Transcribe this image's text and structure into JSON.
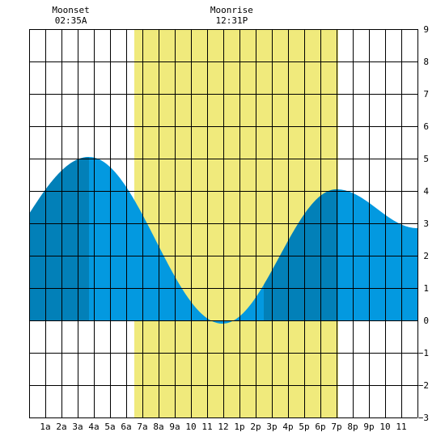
{
  "chart_data": {
    "type": "area",
    "title": "",
    "xlabel": "",
    "ylabel": "",
    "x_range_hours": [
      0,
      24
    ],
    "ylim": [
      -3,
      9
    ],
    "y_ticks": [
      9,
      8,
      7,
      6,
      5,
      4,
      3,
      2,
      1,
      0,
      -1,
      -2,
      -3
    ],
    "x_ticks": [
      {
        "hour": 1,
        "label": "1a"
      },
      {
        "hour": 2,
        "label": "2a"
      },
      {
        "hour": 3,
        "label": "3a"
      },
      {
        "hour": 4,
        "label": "4a"
      },
      {
        "hour": 5,
        "label": "5a"
      },
      {
        "hour": 6,
        "label": "6a"
      },
      {
        "hour": 7,
        "label": "7a"
      },
      {
        "hour": 8,
        "label": "8a"
      },
      {
        "hour": 9,
        "label": "9a"
      },
      {
        "hour": 10,
        "label": "10"
      },
      {
        "hour": 11,
        "label": "11"
      },
      {
        "hour": 12,
        "label": "12"
      },
      {
        "hour": 13,
        "label": "1p"
      },
      {
        "hour": 14,
        "label": "2p"
      },
      {
        "hour": 15,
        "label": "3p"
      },
      {
        "hour": 16,
        "label": "4p"
      },
      {
        "hour": 17,
        "label": "5p"
      },
      {
        "hour": 18,
        "label": "6p"
      },
      {
        "hour": 19,
        "label": "7p"
      },
      {
        "hour": 20,
        "label": "8p"
      },
      {
        "hour": 21,
        "label": "9p"
      },
      {
        "hour": 22,
        "label": "10"
      },
      {
        "hour": 23,
        "label": "11"
      }
    ],
    "daylight": {
      "start_hour": 6.5,
      "end_hour": 19.1
    },
    "dark_bands_hours": [
      [
        0,
        3.7
      ],
      [
        14.5,
        19.1
      ]
    ],
    "tide_extremes": [
      {
        "hour": 3.7,
        "height": 5.05
      },
      {
        "hour": 11.95,
        "height": -0.1
      },
      {
        "hour": 19.0,
        "height": 4.05
      },
      {
        "hour": 24.0,
        "height": 2.85
      }
    ],
    "tide_start": {
      "hour": 0,
      "height": 3.75
    },
    "moon_events": [
      {
        "name": "Moonset",
        "time": "02:35A",
        "hour": 2.58
      },
      {
        "name": "Moonrise",
        "time": "12:31P",
        "hour": 12.52
      }
    ],
    "colors": {
      "daylight": "#f0ea7c",
      "water": "#0399e0",
      "water_dark": "#0280b8",
      "grid": "#000000",
      "background": "#ffffff"
    }
  }
}
